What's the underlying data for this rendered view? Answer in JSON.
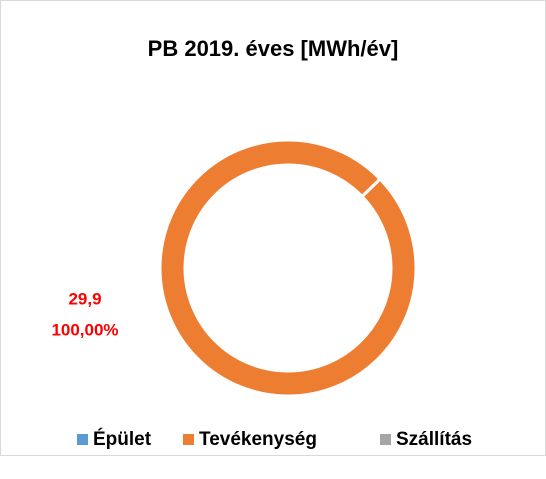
{
  "chart_data": {
    "type": "donut",
    "title": "PB 2019. éves [MWh/év]",
    "categories": [
      "Épület",
      "Tevékenység",
      "Szállítás"
    ],
    "values": [
      0,
      29.9,
      0
    ],
    "value_labels": [
      null,
      "29,9",
      null
    ],
    "percent_labels": [
      null,
      "100,00%",
      null
    ],
    "colors": [
      "#5b9bd5",
      "#ed7d31",
      "#a5a5a5"
    ],
    "legend": "bottom"
  }
}
